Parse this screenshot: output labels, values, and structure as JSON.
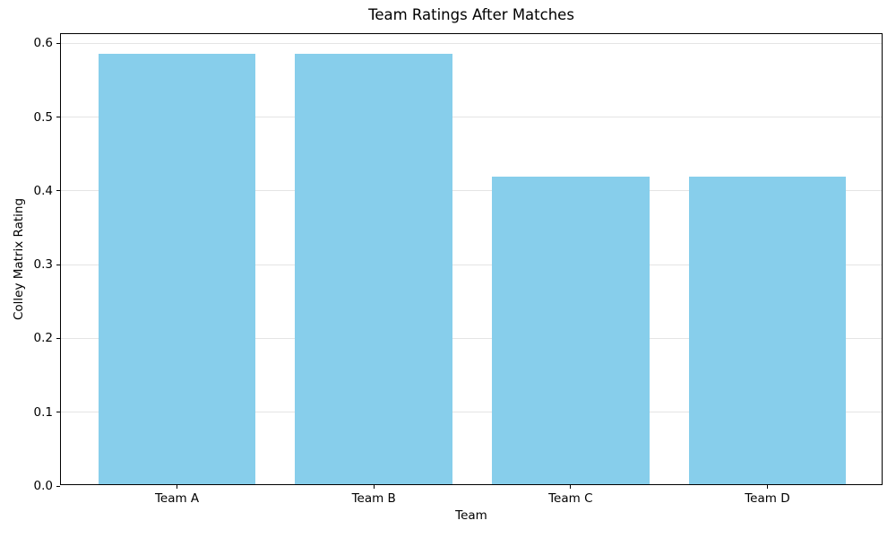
{
  "chart_data": {
    "type": "bar",
    "title": "Team Ratings After Matches",
    "xlabel": "Team",
    "ylabel": "Colley Matrix Rating",
    "categories": [
      "Team A",
      "Team B",
      "Team C",
      "Team D"
    ],
    "values": [
      0.5833,
      0.5833,
      0.4167,
      0.4167
    ],
    "bar_color": "#87CEEB",
    "yticks": [
      0.0,
      0.1,
      0.2,
      0.3,
      0.4,
      0.5,
      0.6
    ],
    "ytick_labels": [
      "0.0",
      "0.1",
      "0.2",
      "0.3",
      "0.4",
      "0.5",
      "0.6"
    ],
    "ylim": [
      0,
      0.6125
    ],
    "xlim": [
      -0.59,
      3.59
    ],
    "bar_width_fraction": 0.8,
    "grid": "horizontal",
    "legend": "none",
    "background": "#ffffff"
  }
}
